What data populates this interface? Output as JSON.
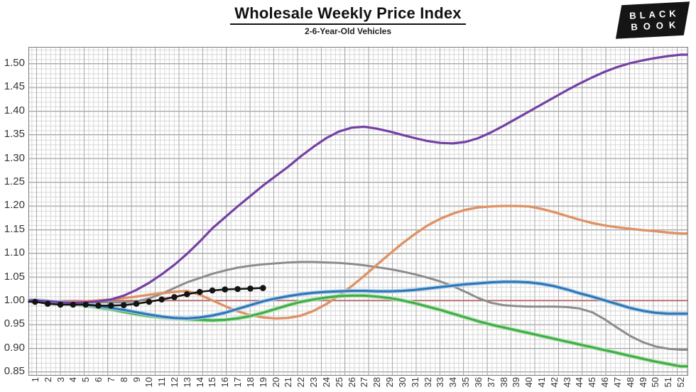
{
  "header": {
    "title": "Wholesale Weekly Price Index",
    "subtitle": "2-6-Year-Old Vehicles"
  },
  "logo": {
    "line1": "BLACK",
    "line2": "BOOK"
  },
  "chart_data": {
    "type": "line",
    "title": "Wholesale Weekly Price Index",
    "subtitle": "2-6-Year-Old Vehicles",
    "xlabel": "",
    "ylabel": "",
    "ylim": [
      0.843,
      1.534
    ],
    "grid": "fine mesh, minor 0.01 / major 0.05",
    "legend_position": "none",
    "y_ticks": [
      "1.50",
      "1.45",
      "1.40",
      "1.35",
      "1.30",
      "1.25",
      "1.20",
      "1.15",
      "1.10",
      "1.05",
      "1.00",
      "0.95",
      "0.90",
      "0.85"
    ],
    "x_labels": [
      "1",
      "2",
      "3",
      "4",
      "5",
      "6",
      "7",
      "8",
      "9",
      "10",
      "11",
      "12",
      "13",
      "14",
      "15",
      "16",
      "17",
      "18",
      "19",
      "20",
      "21",
      "22",
      "23",
      "24",
      "25",
      "26",
      "27",
      "28",
      "29",
      "30",
      "31",
      "32",
      "33",
      "34",
      "35",
      "36",
      "37",
      "38",
      "39",
      "40",
      "41",
      "42",
      "43",
      "44",
      "45",
      "46",
      "47",
      "48",
      "49",
      "50",
      "51",
      "52"
    ],
    "reference_line": {
      "value": 1.0,
      "color": "#C0504D"
    },
    "series": [
      {
        "name": "gray",
        "color": "#8C8C8C",
        "width": 3,
        "marker": false,
        "values": [
          1.0,
          0.999,
          0.998,
          0.997,
          0.996,
          0.996,
          0.996,
          0.996,
          0.998,
          1.004,
          1.014,
          1.026,
          1.038,
          1.047,
          1.056,
          1.063,
          1.069,
          1.073,
          1.076,
          1.078,
          1.08,
          1.081,
          1.081,
          1.08,
          1.079,
          1.077,
          1.074,
          1.07,
          1.066,
          1.061,
          1.055,
          1.048,
          1.04,
          1.03,
          1.018,
          1.005,
          0.995,
          0.99,
          0.988,
          0.987,
          0.987,
          0.987,
          0.986,
          0.983,
          0.975,
          0.96,
          0.942,
          0.925,
          0.912,
          0.903,
          0.898,
          0.896
        ]
      },
      {
        "name": "orange",
        "color": "#DE9265",
        "width": 3.4,
        "marker": false,
        "values": [
          1.0,
          0.998,
          0.997,
          0.997,
          0.998,
          1.0,
          1.002,
          1.005,
          1.008,
          1.012,
          1.015,
          1.018,
          1.02,
          1.012,
          1.0,
          0.988,
          0.977,
          0.969,
          0.964,
          0.962,
          0.963,
          0.968,
          0.978,
          0.992,
          1.01,
          1.03,
          1.052,
          1.075,
          1.098,
          1.12,
          1.14,
          1.158,
          1.172,
          1.183,
          1.191,
          1.196,
          1.198,
          1.199,
          1.199,
          1.198,
          1.193,
          1.186,
          1.178,
          1.17,
          1.163,
          1.158,
          1.154,
          1.151,
          1.148,
          1.146,
          1.143,
          1.141
        ]
      },
      {
        "name": "green",
        "color": "#3FAE49",
        "width": 3.2,
        "marker": false,
        "halo": "#B9E3B4",
        "values": [
          1.0,
          0.998,
          0.995,
          0.992,
          0.989,
          0.985,
          0.981,
          0.976,
          0.971,
          0.967,
          0.964,
          0.962,
          0.96,
          0.959,
          0.958,
          0.959,
          0.962,
          0.967,
          0.974,
          0.982,
          0.99,
          0.997,
          1.002,
          1.006,
          1.009,
          1.01,
          1.01,
          1.008,
          1.005,
          1.0,
          0.994,
          0.987,
          0.98,
          0.972,
          0.964,
          0.956,
          0.949,
          0.943,
          0.937,
          0.931,
          0.925,
          0.919,
          0.913,
          0.907,
          0.901,
          0.895,
          0.889,
          0.883,
          0.877,
          0.871,
          0.866,
          0.861
        ]
      },
      {
        "name": "blue",
        "color": "#2E74B5",
        "width": 3,
        "marker": false,
        "halo": "#A9CCE9",
        "values": [
          1.0,
          0.998,
          0.996,
          0.994,
          0.991,
          0.988,
          0.984,
          0.98,
          0.975,
          0.97,
          0.966,
          0.963,
          0.962,
          0.964,
          0.968,
          0.974,
          0.982,
          0.99,
          0.998,
          1.004,
          1.009,
          1.013,
          1.016,
          1.018,
          1.019,
          1.02,
          1.02,
          1.019,
          1.019,
          1.02,
          1.022,
          1.025,
          1.028,
          1.031,
          1.034,
          1.036,
          1.038,
          1.039,
          1.039,
          1.038,
          1.035,
          1.03,
          1.023,
          1.015,
          1.008,
          1.0,
          0.992,
          0.984,
          0.978,
          0.974,
          0.972,
          0.972
        ]
      },
      {
        "name": "purple",
        "color": "#7440A4",
        "width": 3.2,
        "marker": false,
        "values": [
          1.0,
          0.998,
          0.996,
          0.995,
          0.996,
          0.998,
          1.002,
          1.01,
          1.022,
          1.037,
          1.055,
          1.075,
          1.098,
          1.124,
          1.152,
          1.175,
          1.198,
          1.22,
          1.242,
          1.262,
          1.282,
          1.304,
          1.324,
          1.342,
          1.356,
          1.364,
          1.366,
          1.362,
          1.356,
          1.349,
          1.342,
          1.336,
          1.332,
          1.331,
          1.334,
          1.342,
          1.354,
          1.368,
          1.383,
          1.398,
          1.413,
          1.428,
          1.443,
          1.457,
          1.47,
          1.482,
          1.492,
          1.5,
          1.506,
          1.511,
          1.515,
          1.518
        ]
      },
      {
        "name": "black-weekly",
        "color": "#141414",
        "width": 2.6,
        "marker": true,
        "marker_r": 4.3,
        "values": [
          0.997,
          0.993,
          0.991,
          0.991,
          0.991,
          0.989,
          0.989,
          0.99,
          0.993,
          0.997,
          1.002,
          1.007,
          1.013,
          1.018,
          1.021,
          1.023,
          1.024,
          1.025,
          1.026
        ]
      }
    ]
  }
}
